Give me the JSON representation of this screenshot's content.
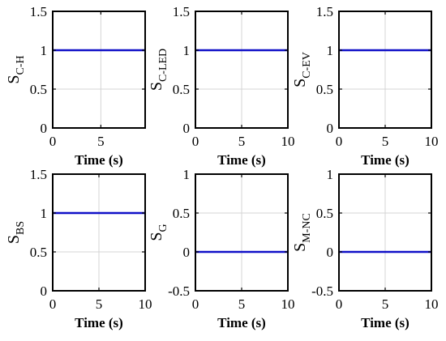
{
  "colors": {
    "line": "#1010c8",
    "grid": "#d4d4d4",
    "axis": "#000000",
    "background": "#ffffff"
  },
  "chart_data": [
    {
      "type": "line",
      "ylabel_main": "S",
      "ylabel_sub": "C-H",
      "xlabel": "Time (s)",
      "xlim": [
        0,
        9.6
      ],
      "ylim": [
        0,
        1.5
      ],
      "xticks": [
        0,
        5
      ],
      "xtick_labels": [
        "0",
        "5"
      ],
      "yticks": [
        0,
        0.5,
        1,
        1.5
      ],
      "ytick_labels": [
        "0",
        "0.5",
        "1",
        "1.5"
      ],
      "grid": true,
      "series": [
        {
          "x": [
            0,
            9.6
          ],
          "y": [
            1,
            1
          ]
        }
      ]
    },
    {
      "type": "line",
      "ylabel_main": "S",
      "ylabel_sub": "C-LED",
      "xlabel": "Time (s)",
      "xlim": [
        0,
        10
      ],
      "ylim": [
        0,
        1.5
      ],
      "xticks": [
        0,
        5,
        10
      ],
      "xtick_labels": [
        "0",
        "5",
        "10"
      ],
      "yticks": [
        0,
        0.5,
        1,
        1.5
      ],
      "ytick_labels": [
        "0",
        "0.5",
        "1",
        "1.5"
      ],
      "grid": true,
      "series": [
        {
          "x": [
            0,
            10
          ],
          "y": [
            1,
            1
          ]
        }
      ]
    },
    {
      "type": "line",
      "ylabel_main": "S",
      "ylabel_sub": "C-EV",
      "xlabel": "Time (s)",
      "xlim": [
        0,
        10
      ],
      "ylim": [
        0,
        1.5
      ],
      "xticks": [
        0,
        5,
        10
      ],
      "xtick_labels": [
        "0",
        "5",
        "10"
      ],
      "yticks": [
        0,
        0.5,
        1,
        1.5
      ],
      "ytick_labels": [
        "0",
        "0.5",
        "1",
        "1.5"
      ],
      "grid": true,
      "series": [
        {
          "x": [
            0,
            10
          ],
          "y": [
            1,
            1
          ]
        }
      ]
    },
    {
      "type": "line",
      "ylabel_main": "S",
      "ylabel_sub": "BS",
      "xlabel": "Time (s)",
      "xlim": [
        0,
        10
      ],
      "ylim": [
        0,
        1.5
      ],
      "xticks": [
        0,
        5,
        10
      ],
      "xtick_labels": [
        "0",
        "5",
        "10"
      ],
      "yticks": [
        0,
        0.5,
        1,
        1.5
      ],
      "ytick_labels": [
        "0",
        "0.5",
        "1",
        "1.5"
      ],
      "grid": true,
      "series": [
        {
          "x": [
            0,
            10
          ],
          "y": [
            1,
            1
          ]
        }
      ]
    },
    {
      "type": "line",
      "ylabel_main": "S",
      "ylabel_sub": "G",
      "xlabel": "Time (s)",
      "xlim": [
        0,
        10
      ],
      "ylim": [
        -0.5,
        1
      ],
      "xticks": [
        0,
        5,
        10
      ],
      "xtick_labels": [
        "0",
        "5",
        "10"
      ],
      "yticks": [
        -0.5,
        0,
        0.5,
        1
      ],
      "ytick_labels": [
        "-0.5",
        "0",
        "0.5",
        "1"
      ],
      "grid": true,
      "series": [
        {
          "x": [
            0,
            10
          ],
          "y": [
            0,
            0
          ]
        }
      ]
    },
    {
      "type": "line",
      "ylabel_main": "S",
      "ylabel_sub": "M-NC",
      "xlabel": "Time (s)",
      "xlim": [
        0,
        10
      ],
      "ylim": [
        -0.5,
        1
      ],
      "xticks": [
        0,
        5,
        10
      ],
      "xtick_labels": [
        "0",
        "5",
        "10"
      ],
      "yticks": [
        -0.5,
        0,
        0.5,
        1
      ],
      "ytick_labels": [
        "-0.5",
        "0",
        "0.5",
        "1"
      ],
      "grid": true,
      "series": [
        {
          "x": [
            0,
            10
          ],
          "y": [
            0,
            0
          ]
        }
      ]
    }
  ]
}
